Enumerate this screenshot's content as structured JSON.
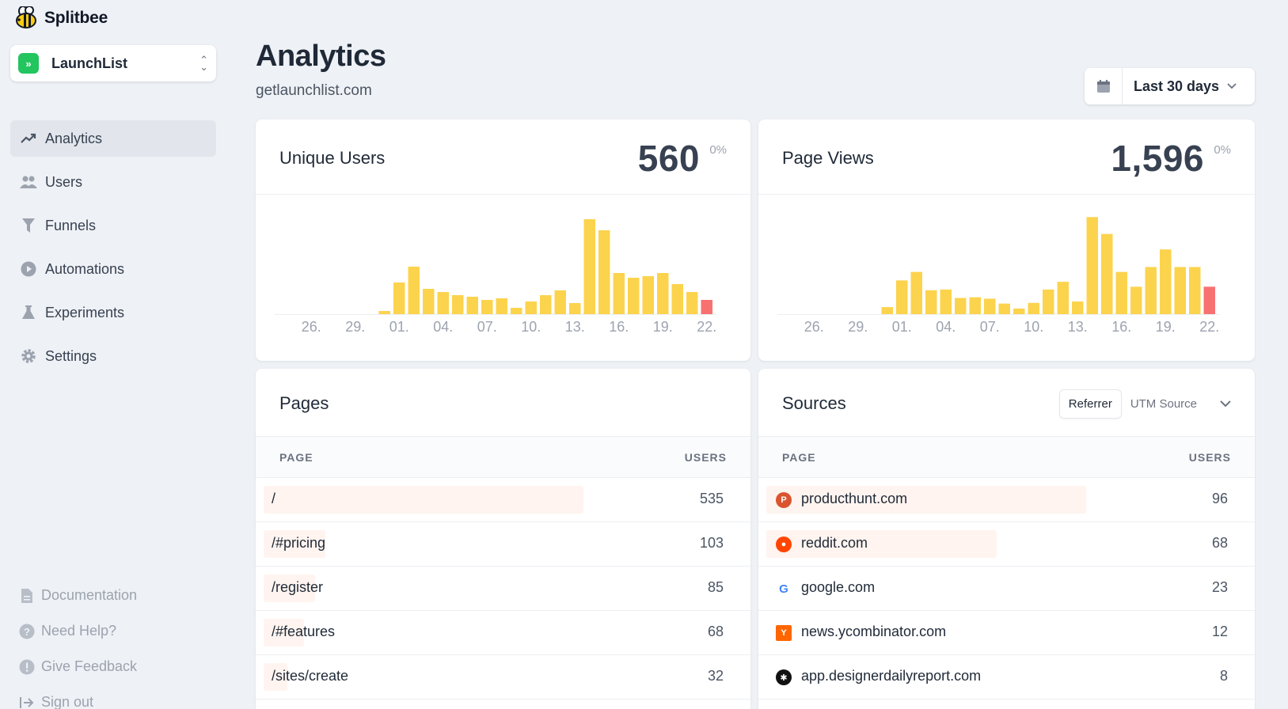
{
  "app": {
    "name": "Splitbee"
  },
  "project": {
    "name": "LaunchList"
  },
  "nav": [
    {
      "label": "Analytics",
      "icon": "trending-up-icon",
      "active": true
    },
    {
      "label": "Users",
      "icon": "users-icon",
      "active": false
    },
    {
      "label": "Funnels",
      "icon": "funnel-icon",
      "active": false
    },
    {
      "label": "Automations",
      "icon": "play-circle-icon",
      "active": false
    },
    {
      "label": "Experiments",
      "icon": "flask-icon",
      "active": false
    },
    {
      "label": "Settings",
      "icon": "gear-icon",
      "active": false
    }
  ],
  "footer_nav": [
    {
      "label": "Documentation",
      "icon": "document-icon"
    },
    {
      "label": "Need Help?",
      "icon": "question-icon"
    },
    {
      "label": "Give Feedback",
      "icon": "exclamation-icon"
    },
    {
      "label": "Sign out",
      "icon": "sign-out-icon"
    }
  ],
  "header": {
    "title": "Analytics",
    "subtitle": "getlaunchlist.com",
    "range": "Last 30 days"
  },
  "colors": {
    "bar": "#fcd34d",
    "bar_current": "#f87171",
    "accent_row": "#fff4ef"
  },
  "stats": {
    "unique_users": {
      "label": "Unique Users",
      "value": "560",
      "delta": "0%"
    },
    "page_views": {
      "label": "Page Views",
      "value": "1,596",
      "delta": "0%"
    }
  },
  "chart_data": [
    {
      "type": "bar",
      "title": "Unique Users",
      "x_ticks": [
        "26.",
        "29.",
        "01.",
        "04.",
        "07.",
        "10.",
        "13.",
        "16.",
        "19.",
        "22."
      ],
      "values": [
        0,
        0,
        0,
        0,
        0,
        0,
        0,
        1,
        10,
        15,
        8,
        7,
        6,
        5.5,
        4.5,
        5,
        2,
        4,
        6,
        7.5,
        3.5,
        30,
        26.5,
        13,
        11.5,
        12,
        13,
        9.5,
        7,
        4.5
      ],
      "highlight_last": true,
      "ylim": [
        0,
        32
      ]
    },
    {
      "type": "bar",
      "title": "Page Views",
      "x_ticks": [
        "26.",
        "29.",
        "01.",
        "04.",
        "07.",
        "10.",
        "13.",
        "16.",
        "19.",
        "22."
      ],
      "values": [
        0,
        0,
        0,
        0,
        0,
        0,
        0,
        5,
        24,
        30,
        17,
        17.5,
        11.5,
        12,
        11,
        7.5,
        4,
        8,
        17.5,
        23,
        9,
        69,
        57,
        30,
        19.5,
        33.5,
        46,
        33.5,
        33.5,
        19.5
      ],
      "highlight_last": true,
      "ylim": [
        0,
        72
      ]
    }
  ],
  "pages": {
    "title": "Pages",
    "headers": {
      "page": "PAGE",
      "users": "USERS"
    },
    "rows": [
      {
        "label": "/",
        "value": "535",
        "share": 0.75
      },
      {
        "label": "/#pricing",
        "value": "103",
        "share": 0.145
      },
      {
        "label": "/register",
        "value": "85",
        "share": 0.12
      },
      {
        "label": "/#features",
        "value": "68",
        "share": 0.095
      },
      {
        "label": "/sites/create",
        "value": "32",
        "share": 0.045
      }
    ]
  },
  "sources": {
    "title": "Sources",
    "tabs": [
      "Referrer",
      "UTM Source"
    ],
    "headers": {
      "page": "PAGE",
      "users": "USERS"
    },
    "rows": [
      {
        "label": "producthunt.com",
        "value": "96",
        "icon": "producthunt-icon",
        "share": 0.75
      },
      {
        "label": "reddit.com",
        "value": "68",
        "icon": "reddit-icon",
        "share": 0.54
      },
      {
        "label": "google.com",
        "value": "23",
        "icon": "google-icon",
        "share": 0.0
      },
      {
        "label": "news.ycombinator.com",
        "value": "12",
        "icon": "ycombinator-icon",
        "share": 0.0
      },
      {
        "label": "app.designerdailyreport.com",
        "value": "8",
        "icon": "designerdailyreport-icon",
        "share": 0.0
      }
    ]
  }
}
